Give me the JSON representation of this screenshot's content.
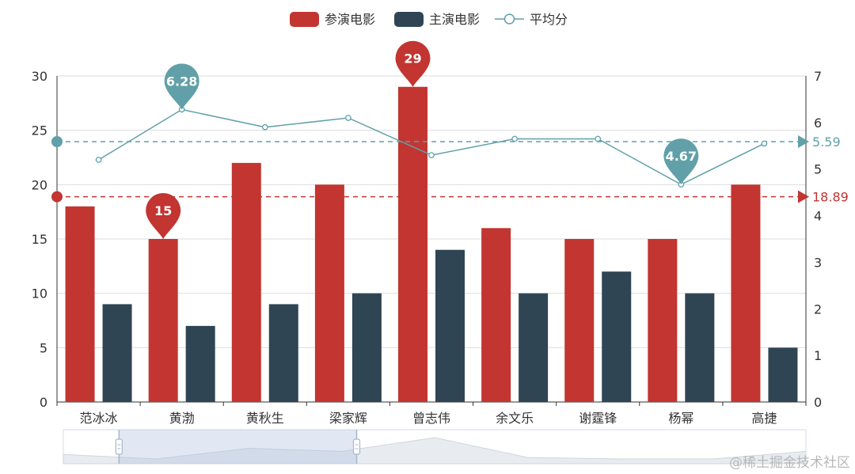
{
  "chart_data": {
    "type": "bar",
    "categories": [
      "范冰冰",
      "黄渤",
      "黄秋生",
      "梁家辉",
      "曾志伟",
      "余文乐",
      "谢霆锋",
      "杨幂",
      "高捷"
    ],
    "series": [
      {
        "name": "参演电影",
        "type": "bar",
        "axis": "left",
        "color": "#c23531",
        "values": [
          18,
          15,
          22,
          20,
          29,
          16,
          15,
          15,
          20
        ]
      },
      {
        "name": "主演电影",
        "type": "bar",
        "axis": "left",
        "color": "#2f4554",
        "values": [
          9,
          7,
          9,
          10,
          14,
          10,
          12,
          10,
          5
        ]
      },
      {
        "name": "平均分",
        "type": "line",
        "axis": "right",
        "color": "#61a0a8",
        "values": [
          5.2,
          6.28,
          5.9,
          6.1,
          5.3,
          5.65,
          5.65,
          4.67,
          5.55
        ]
      }
    ],
    "y_left": {
      "min": 0,
      "max": 30,
      "ticks": [
        "0",
        "5",
        "10",
        "15",
        "20",
        "25",
        "30"
      ]
    },
    "y_right": {
      "min": 0,
      "max": 7,
      "ticks": [
        "0",
        "1",
        "2",
        "3",
        "4",
        "5",
        "6",
        "7"
      ]
    },
    "mark_points": [
      {
        "series": 0,
        "category": 1,
        "label": "15",
        "value": 15
      },
      {
        "series": 0,
        "category": 4,
        "label": "29",
        "value": 29
      },
      {
        "series": 2,
        "category": 1,
        "label": "6.28",
        "value": 6.28
      },
      {
        "series": 2,
        "category": 7,
        "label": "4.67",
        "value": 4.67
      }
    ],
    "mark_lines": [
      {
        "series": 0,
        "axis": "left",
        "label": "18.89",
        "value": 18.89,
        "color": "#c23531"
      },
      {
        "series": 2,
        "axis": "right",
        "label": "5.59",
        "value": 5.59,
        "color": "#61a0a8"
      }
    ],
    "grid": true,
    "legend_position": "top-center",
    "zoom": {
      "start_fraction": 0.075,
      "end_fraction": 0.395
    }
  },
  "watermark": "@稀土掘金技术社区"
}
